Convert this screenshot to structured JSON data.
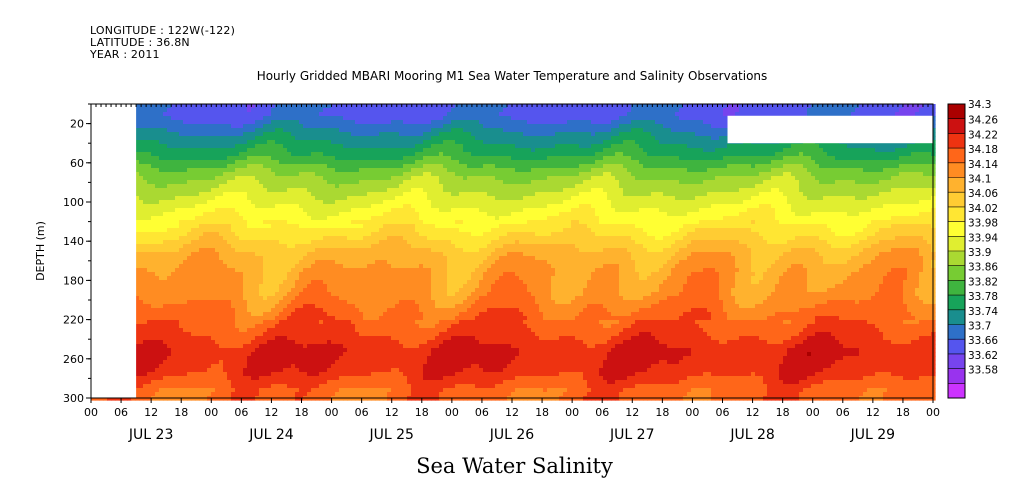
{
  "header": {
    "longitude": "LONGITUDE : 122W(-122)",
    "latitude": "LATITUDE : 36.8N",
    "year": "YEAR : 2011"
  },
  "chart_data": {
    "type": "heatmap",
    "title": "Hourly Gridded MBARI Mooring M1 Sea Water Temperature and Salinity Observations",
    "subtitle": "Sea Water Salinity",
    "ylabel": "DEPTH (m)",
    "ylim": [
      300,
      0
    ],
    "y_ticks": [
      20,
      60,
      100,
      140,
      180,
      220,
      260,
      300
    ],
    "x_range_hours": [
      0,
      168
    ],
    "x_hour_ticks": [
      "00",
      "06",
      "12",
      "18",
      "00",
      "06",
      "12",
      "18",
      "00",
      "06",
      "12",
      "18",
      "00",
      "06",
      "12",
      "18",
      "00",
      "06",
      "12",
      "18",
      "00",
      "06",
      "12",
      "18",
      "00",
      "06",
      "12",
      "18",
      "00"
    ],
    "x_day_labels": [
      "JUL 23",
      "JUL 24",
      "JUL 25",
      "JUL 26",
      "JUL 27",
      "JUL 28",
      "JUL 29"
    ],
    "colorbar": {
      "levels": [
        33.58,
        33.62,
        33.66,
        33.7,
        33.74,
        33.78,
        33.82,
        33.86,
        33.9,
        33.94,
        33.98,
        34.02,
        34.06,
        34.1,
        34.14,
        34.18,
        34.22,
        34.26,
        34.3
      ],
      "labels": [
        "34.3",
        "34.26",
        "34.22",
        "34.18",
        "34.14",
        "34.1",
        "34.06",
        "34.02",
        "33.98",
        "33.94",
        "33.9",
        "33.86",
        "33.82",
        "33.78",
        "33.74",
        "33.7",
        "33.66",
        "33.62",
        "33.58"
      ],
      "colors": [
        "#cc33ff",
        "#9933ee",
        "#7744ee",
        "#5555ee",
        "#2e70c8",
        "#198e8e",
        "#17a35a",
        "#3fb43f",
        "#77cc33",
        "#aad932",
        "#e0ee30",
        "#ffff33",
        "#ffe633",
        "#ffcc33",
        "#ffb22e",
        "#ff8c22",
        "#ff6619",
        "#ee3311",
        "#cc1111",
        "#aa0000"
      ]
    },
    "depth_profile": [
      {
        "depth": 10,
        "salinity": 33.69
      },
      {
        "depth": 30,
        "salinity": 33.76
      },
      {
        "depth": 50,
        "salinity": 33.82
      },
      {
        "depth": 70,
        "salinity": 33.9
      },
      {
        "depth": 90,
        "salinity": 33.95
      },
      {
        "depth": 110,
        "salinity": 34.0
      },
      {
        "depth": 130,
        "salinity": 34.05
      },
      {
        "depth": 150,
        "salinity": 34.11
      },
      {
        "depth": 170,
        "salinity": 34.14
      },
      {
        "depth": 190,
        "salinity": 34.15
      },
      {
        "depth": 210,
        "salinity": 34.19
      },
      {
        "depth": 230,
        "salinity": 34.22
      },
      {
        "depth": 250,
        "salinity": 34.26
      },
      {
        "depth": 270,
        "salinity": 34.25
      },
      {
        "depth": 290,
        "salinity": 34.2
      }
    ],
    "missing_regions": [
      {
        "hour_start": 0,
        "hour_end": 9,
        "depth_top": 0,
        "depth_bottom": 300
      },
      {
        "hour_start": 127,
        "hour_end": 168,
        "depth_top": 12,
        "depth_bottom": 40
      }
    ]
  }
}
